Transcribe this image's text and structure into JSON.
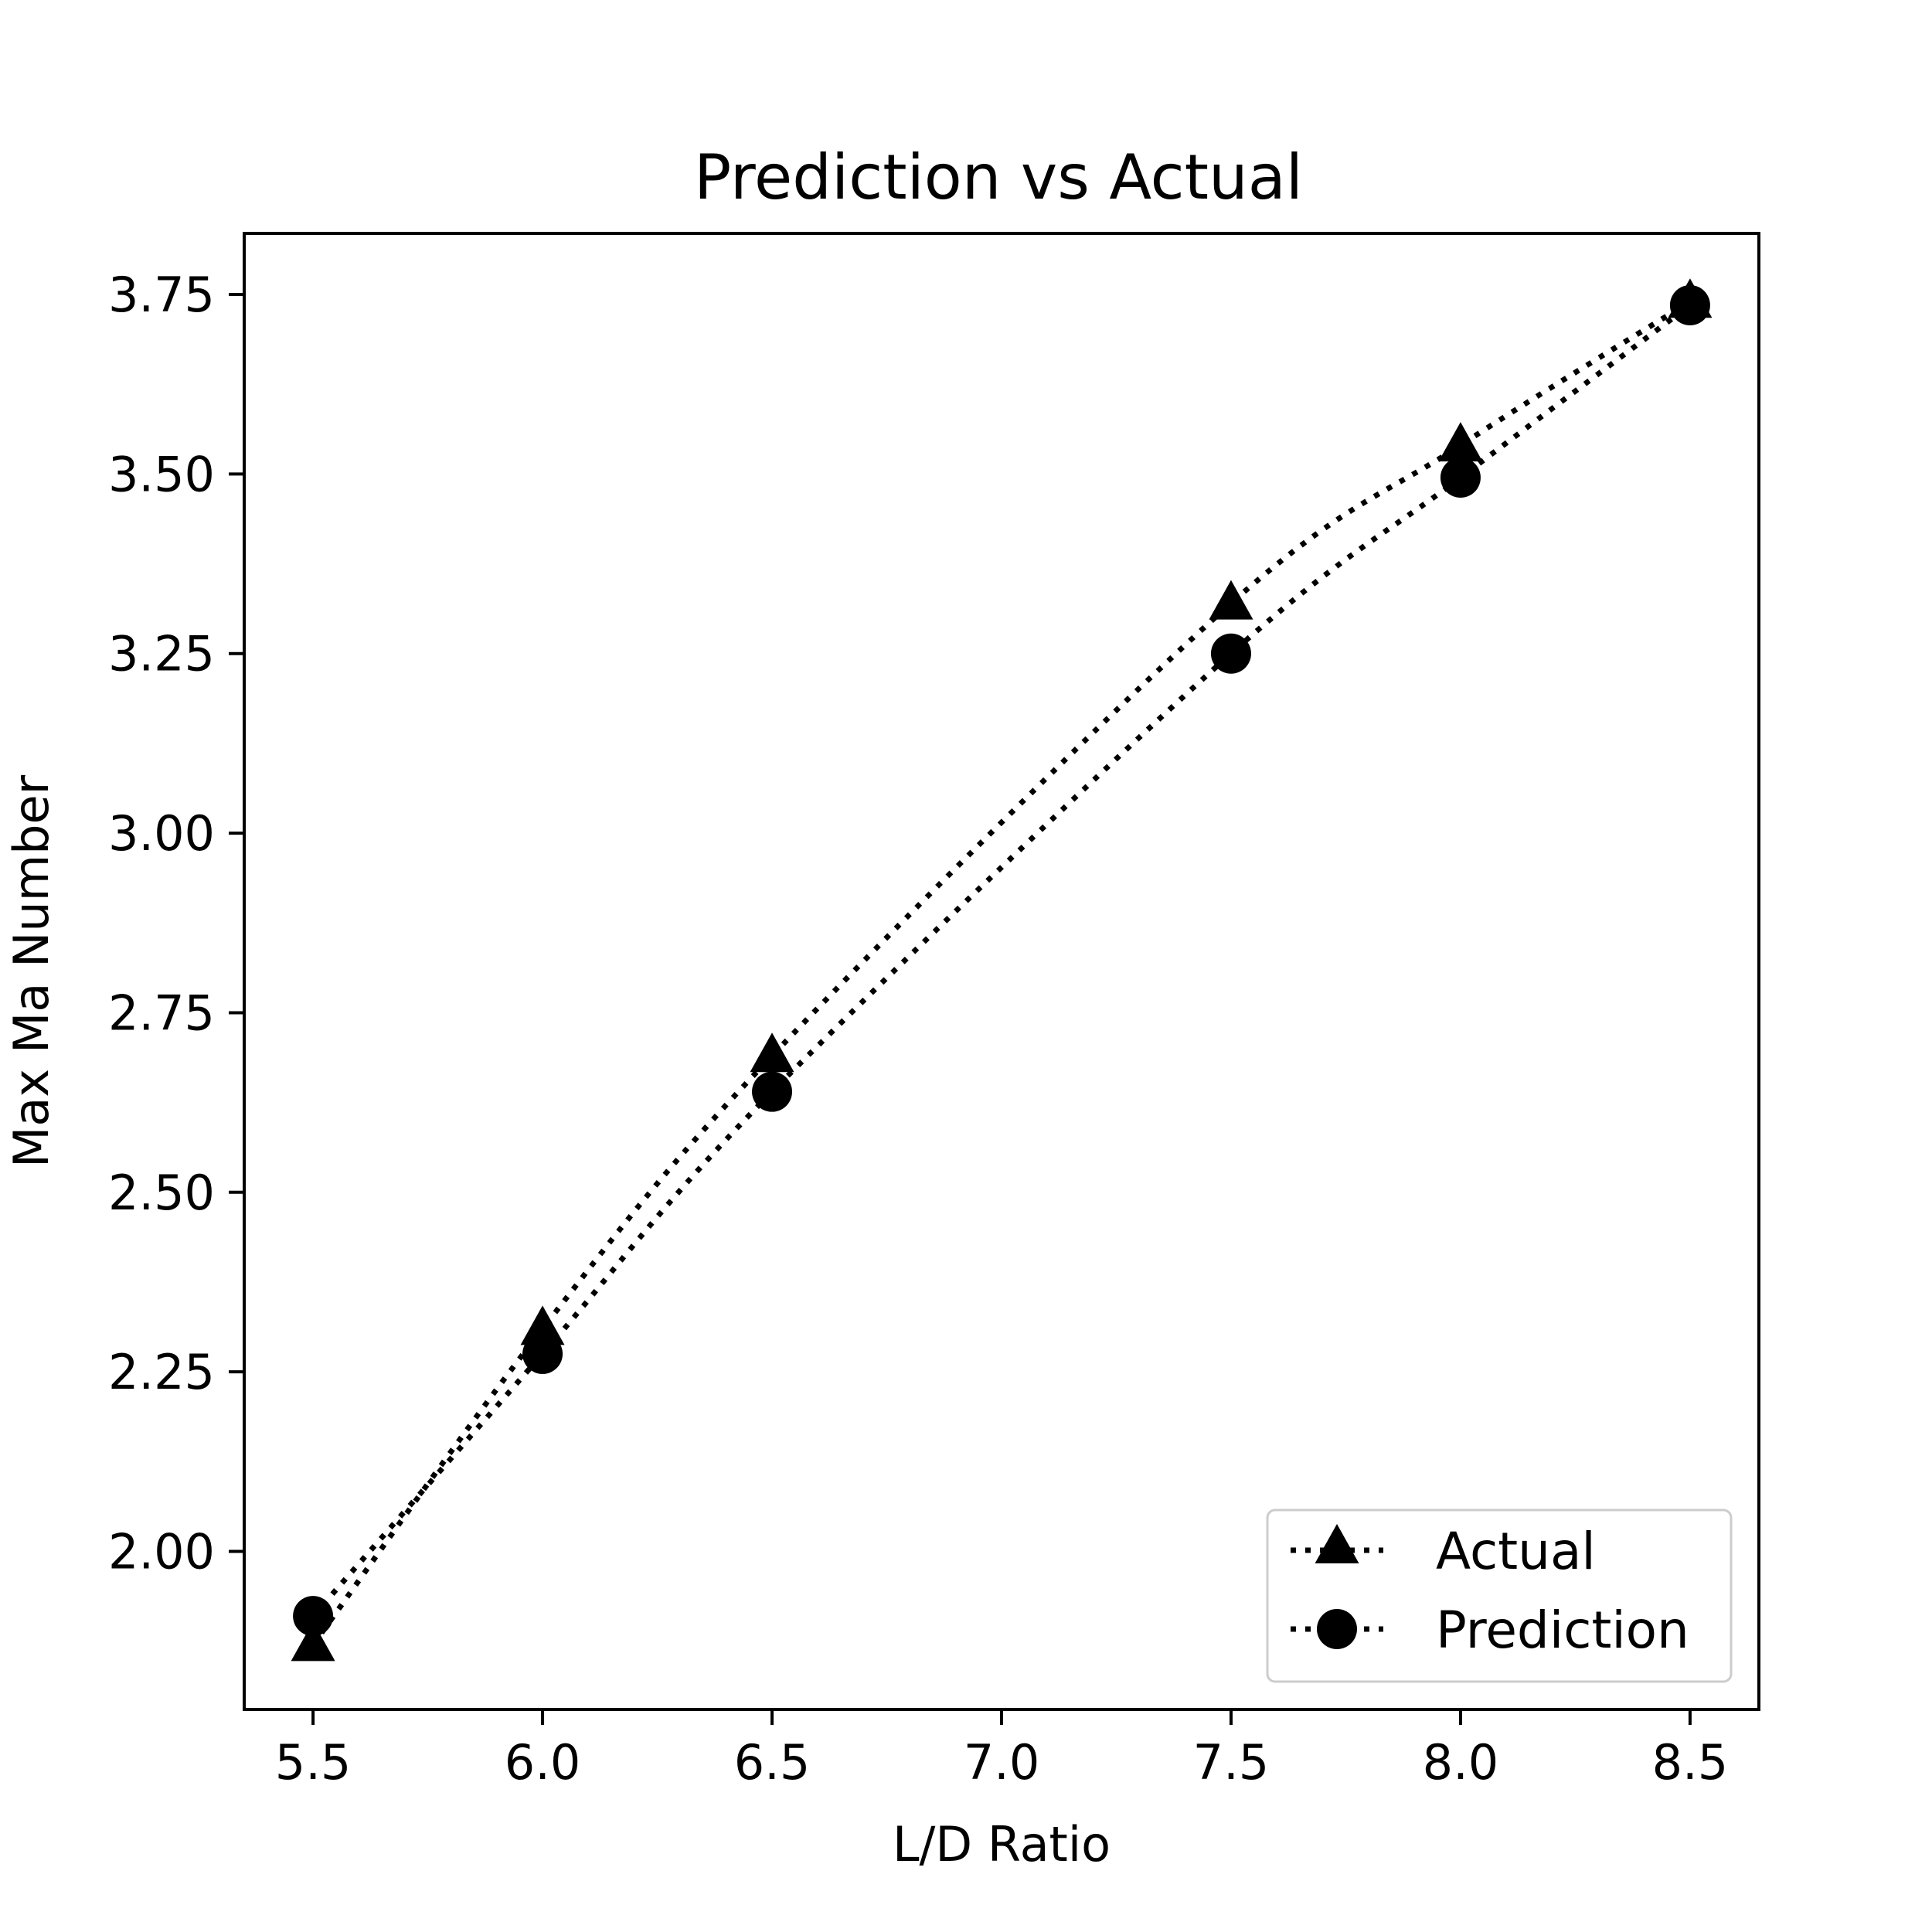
{
  "chart_data": {
    "type": "line",
    "title": "Prediction vs Actual",
    "xlabel": "L/D Ratio",
    "ylabel": "Max Ma Number",
    "xlim": [
      5.35,
      8.65
    ],
    "ylim": [
      1.78,
      3.835
    ],
    "xticks": [
      "5.5",
      "6.0",
      "6.5",
      "7.0",
      "7.5",
      "8.0",
      "8.5"
    ],
    "yticks": [
      "2.00",
      "2.25",
      "2.50",
      "2.75",
      "3.00",
      "3.25",
      "3.50",
      "3.75"
    ],
    "x": [
      5.5,
      6.0,
      6.5,
      7.5,
      8.0,
      8.5
    ],
    "series": [
      {
        "name": "Actual",
        "marker": "triangle",
        "linestyle": "dotted",
        "color": "#000000",
        "values": [
          1.87,
          2.31,
          2.69,
          3.32,
          3.54,
          3.74
        ]
      },
      {
        "name": "Prediction",
        "marker": "circle",
        "linestyle": "dotted",
        "color": "#000000",
        "values": [
          1.91,
          2.275,
          2.64,
          3.25,
          3.495,
          3.735
        ]
      }
    ],
    "grid": false,
    "legend_position": "lower-right"
  }
}
